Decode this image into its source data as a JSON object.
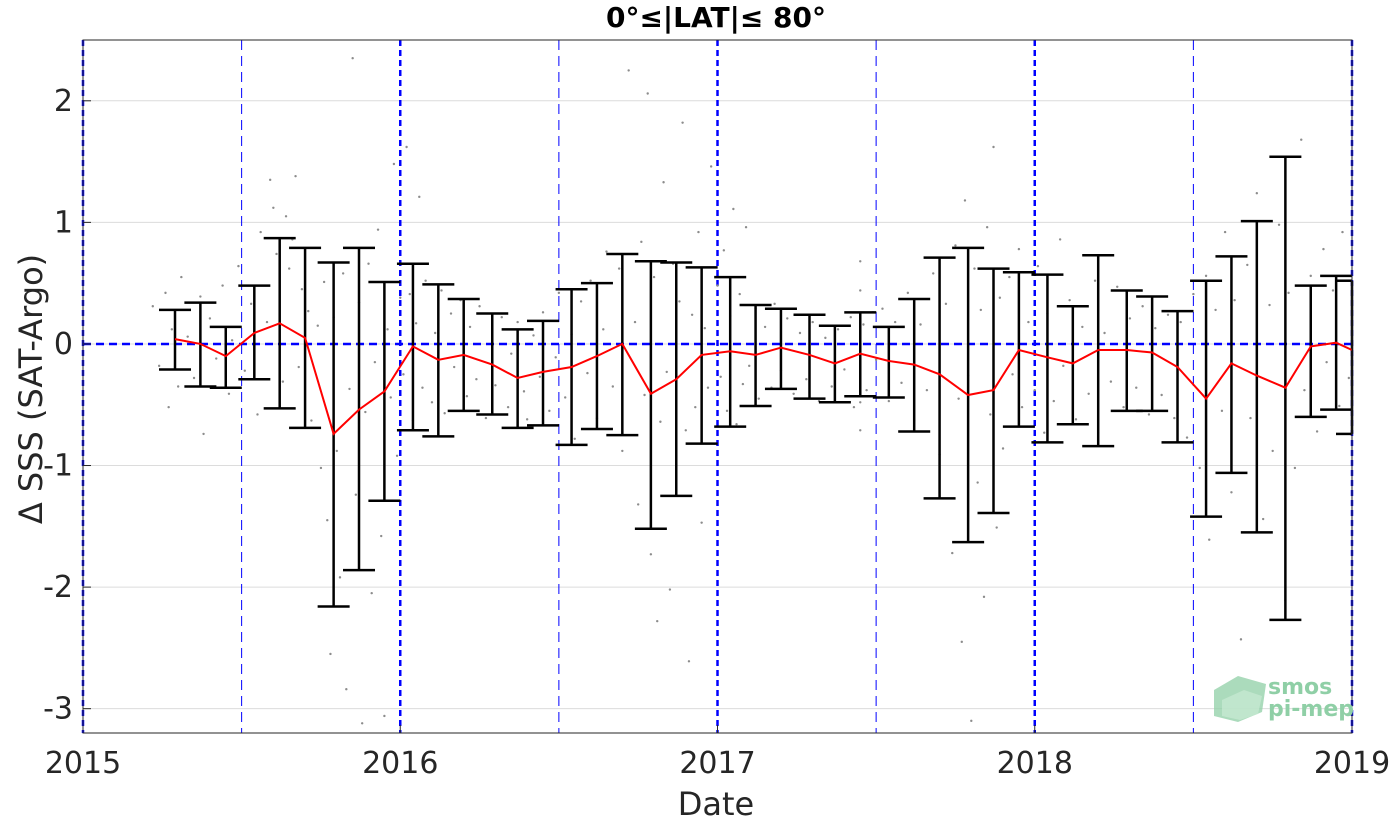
{
  "chart_data": {
    "type": "scatter",
    "title": "0°≤|LAT|≤ 80°",
    "xlabel": "Date",
    "ylabel": "Δ SSS (SAT-Argo)",
    "xlim": [
      2015,
      2019
    ],
    "ylim": [
      -3.2,
      2.5
    ],
    "xticks": [
      "2015",
      "2016",
      "2017",
      "2018",
      "2019"
    ],
    "yticks": [
      -3,
      -2,
      -1,
      0,
      1,
      2
    ],
    "grid": true,
    "colors": {
      "mean_line": "#ff0000",
      "error_bars": "#000000",
      "scatter": "#8c8c8c",
      "reference_lines": "#0000ff"
    },
    "zero_reference": 0,
    "year_lines": [
      2015,
      2016,
      2017,
      2018,
      2019
    ],
    "half_year_lines": [
      2015.5,
      2016.5,
      2017.5,
      2018.5
    ],
    "series": [
      {
        "type": "errorbar",
        "x": [
          2015.29,
          2015.37,
          2015.45,
          2015.54,
          2015.62,
          2015.7,
          2015.79,
          2015.87,
          2015.95,
          2016.04,
          2016.12,
          2016.2,
          2016.29,
          2016.37,
          2016.45,
          2016.54,
          2016.62,
          2016.7,
          2016.79,
          2016.87,
          2016.95,
          2017.04,
          2017.12,
          2017.2,
          2017.29,
          2017.37,
          2017.45,
          2017.54,
          2017.62,
          2017.7,
          2017.79,
          2017.87,
          2017.95,
          2018.04,
          2018.12,
          2018.2,
          2018.29,
          2018.37,
          2018.45,
          2018.54,
          2018.62,
          2018.7,
          2018.79,
          2018.87,
          2018.95,
          2019.0
        ],
        "mean": [
          0.04,
          0.0,
          -0.1,
          0.09,
          0.17,
          0.05,
          -0.74,
          -0.54,
          -0.39,
          -0.02,
          -0.13,
          -0.09,
          -0.17,
          -0.28,
          -0.23,
          -0.19,
          -0.1,
          0.0,
          -0.41,
          -0.29,
          -0.09,
          -0.06,
          -0.09,
          -0.03,
          -0.09,
          -0.16,
          -0.08,
          -0.14,
          -0.17,
          -0.25,
          -0.42,
          -0.38,
          -0.05,
          -0.11,
          -0.16,
          -0.05,
          -0.05,
          -0.07,
          -0.19,
          -0.45,
          -0.16,
          -0.26,
          -0.36,
          -0.02,
          0.01,
          -0.05
        ],
        "upper": [
          0.28,
          0.34,
          0.14,
          0.48,
          0.87,
          0.79,
          0.67,
          0.79,
          0.51,
          0.66,
          0.49,
          0.37,
          0.25,
          0.12,
          0.19,
          0.45,
          0.5,
          0.74,
          0.68,
          0.67,
          0.63,
          0.55,
          0.32,
          0.29,
          0.24,
          0.15,
          0.26,
          0.14,
          0.37,
          0.71,
          0.79,
          0.62,
          0.59,
          0.57,
          0.31,
          0.73,
          0.44,
          0.39,
          0.27,
          0.52,
          0.72,
          1.01,
          1.54,
          0.48,
          0.56,
          0.52
        ],
        "lower": [
          -0.21,
          -0.35,
          -0.36,
          -0.29,
          -0.53,
          -0.69,
          -2.16,
          -1.86,
          -1.29,
          -0.71,
          -0.76,
          -0.55,
          -0.58,
          -0.69,
          -0.67,
          -0.83,
          -0.7,
          -0.75,
          -1.52,
          -1.25,
          -0.82,
          -0.68,
          -0.51,
          -0.37,
          -0.45,
          -0.48,
          -0.43,
          -0.44,
          -0.72,
          -1.27,
          -1.63,
          -1.39,
          -0.68,
          -0.81,
          -0.66,
          -0.84,
          -0.55,
          -0.55,
          -0.81,
          -1.42,
          -1.06,
          -1.55,
          -2.27,
          -0.6,
          -0.54,
          -0.74
        ]
      }
    ],
    "scatter_points": [
      [
        2015.22,
        0.31
      ],
      [
        2015.24,
        -0.18
      ],
      [
        2015.26,
        0.42
      ],
      [
        2015.27,
        -0.52
      ],
      [
        2015.28,
        0.12
      ],
      [
        2015.3,
        -0.35
      ],
      [
        2015.31,
        0.55
      ],
      [
        2015.33,
        0.06
      ],
      [
        2015.35,
        -0.28
      ],
      [
        2015.37,
        0.39
      ],
      [
        2015.38,
        -0.74
      ],
      [
        2015.4,
        0.21
      ],
      [
        2015.42,
        -0.12
      ],
      [
        2015.44,
        0.48
      ],
      [
        2015.46,
        -0.41
      ],
      [
        2015.47,
        0.03
      ],
      [
        2015.49,
        0.64
      ],
      [
        2015.51,
        -0.22
      ],
      [
        2015.53,
        0.33
      ],
      [
        2015.55,
        -0.58
      ],
      [
        2015.56,
        0.92
      ],
      [
        2015.58,
        0.18
      ],
      [
        2015.59,
        1.35
      ],
      [
        2015.6,
        1.12
      ],
      [
        2015.61,
        0.74
      ],
      [
        2015.63,
        -0.31
      ],
      [
        2015.64,
        1.05
      ],
      [
        2015.65,
        0.62
      ],
      [
        2015.66,
        0.86
      ],
      [
        2015.67,
        1.38
      ],
      [
        2015.68,
        -0.19
      ],
      [
        2015.69,
        0.45
      ],
      [
        2015.71,
        0.27
      ],
      [
        2015.72,
        -0.63
      ],
      [
        2015.74,
        0.15
      ],
      [
        2015.75,
        -1.02
      ],
      [
        2015.76,
        0.51
      ],
      [
        2015.77,
        -1.45
      ],
      [
        2015.78,
        -2.55
      ],
      [
        2015.79,
        0.22
      ],
      [
        2015.8,
        -0.88
      ],
      [
        2015.81,
        -1.92
      ],
      [
        2015.82,
        0.58
      ],
      [
        2015.83,
        -2.84
      ],
      [
        2015.84,
        -0.37
      ],
      [
        2015.85,
        2.35
      ],
      [
        2015.86,
        -1.24
      ],
      [
        2015.87,
        0.34
      ],
      [
        2015.88,
        -3.12
      ],
      [
        2015.89,
        -0.56
      ],
      [
        2015.9,
        0.66
      ],
      [
        2015.91,
        -2.05
      ],
      [
        2015.92,
        -0.15
      ],
      [
        2015.93,
        0.94
      ],
      [
        2015.94,
        -1.58
      ],
      [
        2015.95,
        -3.06
      ],
      [
        2015.96,
        0.12
      ],
      [
        2015.97,
        -0.44
      ],
      [
        2015.98,
        1.48
      ],
      [
        2015.99,
        -0.92
      ],
      [
        2016.0,
        0.38
      ],
      [
        2016.01,
        -0.25
      ],
      [
        2016.02,
        1.62
      ],
      [
        2016.03,
        0.41
      ],
      [
        2016.04,
        -0.63
      ],
      [
        2016.05,
        0.17
      ],
      [
        2016.06,
        1.21
      ],
      [
        2016.07,
        -0.36
      ],
      [
        2016.08,
        0.52
      ],
      [
        2016.1,
        -0.48
      ],
      [
        2016.11,
        0.09
      ],
      [
        2016.13,
        0.44
      ],
      [
        2016.14,
        -0.57
      ],
      [
        2016.16,
        0.25
      ],
      [
        2016.17,
        -0.19
      ],
      [
        2016.19,
        0.36
      ],
      [
        2016.21,
        -0.43
      ],
      [
        2016.22,
        0.14
      ],
      [
        2016.24,
        -0.29
      ],
      [
        2016.25,
        0.31
      ],
      [
        2016.27,
        -0.61
      ],
      [
        2016.29,
        0.05
      ],
      [
        2016.3,
        -0.34
      ],
      [
        2016.32,
        0.22
      ],
      [
        2016.34,
        -0.52
      ],
      [
        2016.35,
        -0.08
      ],
      [
        2016.37,
        0.18
      ],
      [
        2016.39,
        -0.39
      ],
      [
        2016.4,
        -0.62
      ],
      [
        2016.42,
        0.07
      ],
      [
        2016.44,
        -0.27
      ],
      [
        2016.45,
        0.26
      ],
      [
        2016.47,
        -0.55
      ],
      [
        2016.49,
        -0.11
      ],
      [
        2016.5,
        0.42
      ],
      [
        2016.52,
        -0.44
      ],
      [
        2016.54,
        0.08
      ],
      [
        2016.55,
        -0.78
      ],
      [
        2016.57,
        0.35
      ],
      [
        2016.59,
        -0.24
      ],
      [
        2016.6,
        0.52
      ],
      [
        2016.62,
        -0.61
      ],
      [
        2016.64,
        0.12
      ],
      [
        2016.65,
        0.76
      ],
      [
        2016.67,
        -0.35
      ],
      [
        2016.69,
        0.62
      ],
      [
        2016.7,
        -0.88
      ],
      [
        2016.72,
        2.25
      ],
      [
        2016.74,
        0.18
      ],
      [
        2016.75,
        -1.32
      ],
      [
        2016.76,
        0.84
      ],
      [
        2016.77,
        -0.42
      ],
      [
        2016.78,
        2.06
      ],
      [
        2016.79,
        -1.73
      ],
      [
        2016.8,
        0.55
      ],
      [
        2016.81,
        -2.28
      ],
      [
        2016.82,
        -0.64
      ],
      [
        2016.83,
        1.33
      ],
      [
        2016.84,
        -0.23
      ],
      [
        2016.85,
        -2.02
      ],
      [
        2016.86,
        0.66
      ],
      [
        2016.87,
        -1.18
      ],
      [
        2016.88,
        0.35
      ],
      [
        2016.89,
        1.82
      ],
      [
        2016.9,
        -0.71
      ],
      [
        2016.91,
        -2.61
      ],
      [
        2016.92,
        0.24
      ],
      [
        2016.93,
        -0.52
      ],
      [
        2016.94,
        0.92
      ],
      [
        2016.95,
        -1.47
      ],
      [
        2016.96,
        0.13
      ],
      [
        2016.97,
        -0.36
      ],
      [
        2016.98,
        1.46
      ],
      [
        2016.99,
        -0.82
      ],
      [
        2017.0,
        0.48
      ],
      [
        2017.01,
        -0.27
      ],
      [
        2017.02,
        0.77
      ],
      [
        2017.03,
        -0.55
      ],
      [
        2017.04,
        0.23
      ],
      [
        2017.05,
        1.11
      ],
      [
        2017.06,
        -0.66
      ],
      [
        2017.07,
        0.41
      ],
      [
        2017.08,
        -0.33
      ],
      [
        2017.09,
        0.96
      ],
      [
        2017.1,
        -0.18
      ],
      [
        2017.12,
        0.29
      ],
      [
        2017.13,
        -0.45
      ],
      [
        2017.15,
        0.14
      ],
      [
        2017.17,
        -0.36
      ],
      [
        2017.18,
        0.33
      ],
      [
        2017.2,
        -0.22
      ],
      [
        2017.22,
        0.21
      ],
      [
        2017.24,
        -0.41
      ],
      [
        2017.26,
        0.09
      ],
      [
        2017.28,
        -0.29
      ],
      [
        2017.3,
        0.18
      ],
      [
        2017.32,
        -0.47
      ],
      [
        2017.34,
        0.05
      ],
      [
        2017.36,
        -0.35
      ],
      [
        2017.38,
        0.12
      ],
      [
        2017.4,
        -0.21
      ],
      [
        2017.42,
        0.22
      ],
      [
        2017.43,
        -0.52
      ],
      [
        2017.45,
        0.68
      ],
      [
        2017.45,
        -0.71
      ],
      [
        2017.45,
        0.44
      ],
      [
        2017.45,
        -0.48
      ],
      [
        2017.46,
        0.16
      ],
      [
        2017.47,
        -0.38
      ],
      [
        2017.49,
        0.26
      ],
      [
        2017.5,
        -0.13
      ],
      [
        2017.52,
        0.29
      ],
      [
        2017.54,
        -0.47
      ],
      [
        2017.56,
        0.18
      ],
      [
        2017.58,
        -0.32
      ],
      [
        2017.6,
        0.42
      ],
      [
        2017.62,
        -0.63
      ],
      [
        2017.64,
        0.16
      ],
      [
        2017.66,
        -0.38
      ],
      [
        2017.68,
        0.58
      ],
      [
        2017.7,
        -0.91
      ],
      [
        2017.72,
        0.33
      ],
      [
        2017.74,
        -1.72
      ],
      [
        2017.75,
        0.81
      ],
      [
        2017.76,
        -0.45
      ],
      [
        2017.77,
        -2.45
      ],
      [
        2017.78,
        1.18
      ],
      [
        2017.79,
        -0.26
      ],
      [
        2017.8,
        -3.1
      ],
      [
        2017.81,
        0.62
      ],
      [
        2017.82,
        -1.14
      ],
      [
        2017.83,
        0.28
      ],
      [
        2017.84,
        -2.08
      ],
      [
        2017.85,
        0.96
      ],
      [
        2017.86,
        -0.58
      ],
      [
        2017.87,
        1.62
      ],
      [
        2017.88,
        -1.51
      ],
      [
        2017.89,
        0.38
      ],
      [
        2017.9,
        -0.86
      ],
      [
        2017.92,
        0.55
      ],
      [
        2017.93,
        -0.25
      ],
      [
        2017.95,
        0.78
      ],
      [
        2017.96,
        -0.52
      ],
      [
        2017.98,
        0.18
      ],
      [
        2018.0,
        -0.38
      ],
      [
        2018.01,
        0.64
      ],
      [
        2018.03,
        -0.73
      ],
      [
        2018.04,
        0.25
      ],
      [
        2018.06,
        -0.47
      ],
      [
        2018.08,
        0.86
      ],
      [
        2018.09,
        -0.18
      ],
      [
        2018.11,
        0.36
      ],
      [
        2018.13,
        -0.62
      ],
      [
        2018.15,
        0.14
      ],
      [
        2018.17,
        -0.41
      ],
      [
        2018.19,
        0.52
      ],
      [
        2018.2,
        -0.73
      ],
      [
        2018.22,
        0.09
      ],
      [
        2018.24,
        -0.31
      ],
      [
        2018.26,
        0.47
      ],
      [
        2018.28,
        -0.52
      ],
      [
        2018.3,
        0.21
      ],
      [
        2018.32,
        -0.36
      ],
      [
        2018.34,
        0.31
      ],
      [
        2018.36,
        -0.58
      ],
      [
        2018.38,
        0.13
      ],
      [
        2018.4,
        -0.42
      ],
      [
        2018.42,
        0.24
      ],
      [
        2018.44,
        -0.61
      ],
      [
        2018.46,
        0.18
      ],
      [
        2018.48,
        -0.77
      ],
      [
        2018.5,
        0.41
      ],
      [
        2018.52,
        -1.02
      ],
      [
        2018.54,
        0.56
      ],
      [
        2018.55,
        -1.61
      ],
      [
        2018.57,
        0.28
      ],
      [
        2018.59,
        -0.55
      ],
      [
        2018.6,
        0.92
      ],
      [
        2018.62,
        -1.22
      ],
      [
        2018.63,
        0.36
      ],
      [
        2018.65,
        -2.43
      ],
      [
        2018.67,
        0.65
      ],
      [
        2018.68,
        -0.61
      ],
      [
        2018.7,
        1.24
      ],
      [
        2018.72,
        -1.44
      ],
      [
        2018.74,
        0.32
      ],
      [
        2018.75,
        -0.88
      ],
      [
        2018.77,
        0.98
      ],
      [
        2018.79,
        -2.11
      ],
      [
        2018.8,
        0.42
      ],
      [
        2018.82,
        -1.02
      ],
      [
        2018.84,
        1.68
      ],
      [
        2018.85,
        -0.38
      ],
      [
        2018.87,
        0.56
      ],
      [
        2018.89,
        -0.72
      ],
      [
        2018.91,
        0.78
      ],
      [
        2018.92,
        -0.15
      ],
      [
        2018.94,
        0.44
      ],
      [
        2018.96,
        -0.51
      ],
      [
        2018.97,
        0.92
      ],
      [
        2018.99,
        -0.28
      ]
    ],
    "logo": {
      "line1": "smos",
      "line2": "pi-mep"
    }
  }
}
